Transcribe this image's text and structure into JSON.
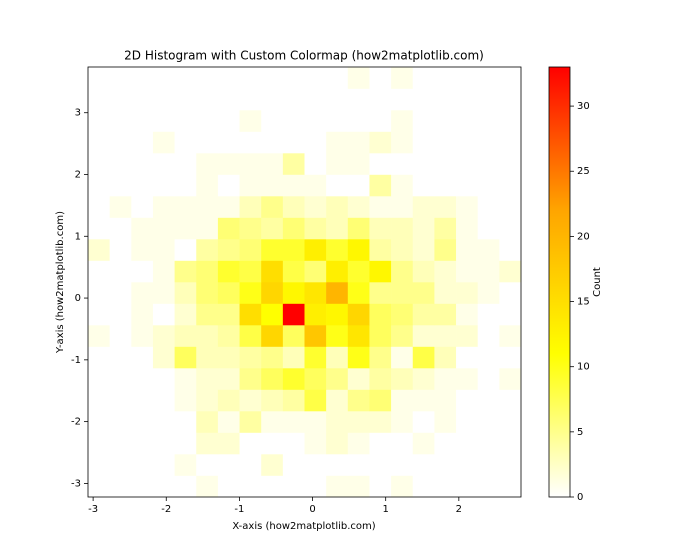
{
  "chart_data": {
    "type": "histogram2d",
    "title": "2D Histogram with Custom Colormap (how2matplotlib.com)",
    "x_label": "X-axis (how2matplotlib.com)",
    "y_label": "Y-axis (how2matplotlib.com)",
    "colorbar_label": "Count",
    "colormap": [
      "#ffffff",
      "#ffff00",
      "#ffa500",
      "#ff0000"
    ],
    "clim": [
      0,
      33
    ],
    "cticks": [
      0,
      5,
      10,
      15,
      20,
      25,
      30
    ],
    "xlim": [
      -3.07,
      2.85
    ],
    "ylim": [
      -3.22,
      3.74
    ],
    "xticks": [
      -3,
      -2,
      -1,
      0,
      1,
      2
    ],
    "yticks": [
      -3,
      -2,
      -1,
      0,
      1,
      2,
      3
    ],
    "xbins": [
      -3.07,
      -2.774,
      -2.478,
      -2.182,
      -1.886,
      -1.59,
      -1.294,
      -0.998,
      -0.702,
      -0.406,
      -0.11,
      0.186,
      0.482,
      0.778,
      1.074,
      1.37,
      1.666,
      1.962,
      2.258,
      2.554,
      2.85
    ],
    "ybins": [
      -3.22,
      -2.872,
      -2.524,
      -2.176,
      -1.828,
      -1.48,
      -1.132,
      -0.784,
      -0.436,
      -0.088,
      0.26,
      0.608,
      0.956,
      1.304,
      1.652,
      2.0,
      2.348,
      2.696,
      3.044,
      3.392,
      3.74
    ],
    "counts": [
      [
        0,
        0,
        0,
        0,
        0,
        1,
        0,
        0,
        0,
        0,
        0,
        1,
        1,
        0,
        1,
        0,
        0,
        0,
        0,
        0
      ],
      [
        0,
        0,
        0,
        0,
        1,
        0,
        0,
        0,
        2,
        0,
        0,
        0,
        0,
        0,
        0,
        0,
        0,
        0,
        0,
        0
      ],
      [
        0,
        0,
        0,
        0,
        0,
        2,
        2,
        0,
        0,
        0,
        1,
        2,
        1,
        0,
        0,
        1,
        0,
        0,
        0,
        0
      ],
      [
        0,
        0,
        0,
        0,
        0,
        3,
        1,
        4,
        1,
        1,
        1,
        2,
        2,
        2,
        1,
        0,
        1,
        0,
        0,
        0
      ],
      [
        0,
        0,
        0,
        0,
        1,
        2,
        3,
        2,
        3,
        4,
        8,
        2,
        5,
        6,
        1,
        1,
        1,
        0,
        0,
        0
      ],
      [
        0,
        0,
        0,
        0,
        1,
        2,
        2,
        5,
        7,
        9,
        7,
        5,
        2,
        4,
        3,
        2,
        1,
        1,
        0,
        1
      ],
      [
        0,
        0,
        0,
        2,
        7,
        3,
        3,
        4,
        5,
        3,
        9,
        3,
        10,
        5,
        1,
        8,
        3,
        0,
        0,
        0
      ],
      [
        1,
        0,
        1,
        2,
        3,
        3,
        4,
        8,
        16,
        7,
        18,
        10,
        14,
        7,
        5,
        2,
        2,
        2,
        0,
        1
      ],
      [
        0,
        0,
        1,
        0,
        2,
        5,
        5,
        15,
        11,
        33,
        13,
        12,
        16,
        7,
        6,
        4,
        4,
        1,
        0,
        0
      ],
      [
        0,
        0,
        1,
        1,
        3,
        6,
        7,
        10,
        16,
        12,
        14,
        20,
        10,
        5,
        5,
        5,
        2,
        2,
        1,
        0
      ],
      [
        0,
        0,
        0,
        1,
        5,
        6,
        9,
        8,
        15,
        8,
        6,
        13,
        9,
        12,
        5,
        3,
        2,
        1,
        1,
        2
      ],
      [
        2,
        0,
        1,
        1,
        0,
        4,
        5,
        6,
        9,
        9,
        13,
        9,
        12,
        4,
        3,
        2,
        5,
        1,
        1,
        0
      ],
      [
        0,
        0,
        1,
        1,
        1,
        1,
        6,
        5,
        4,
        6,
        4,
        3,
        6,
        3,
        3,
        2,
        4,
        1,
        0,
        0
      ],
      [
        0,
        1,
        0,
        1,
        1,
        1,
        1,
        3,
        5,
        3,
        2,
        3,
        2,
        1,
        1,
        2,
        2,
        1,
        0,
        0
      ],
      [
        0,
        0,
        0,
        0,
        0,
        1,
        0,
        1,
        1,
        1,
        1,
        0,
        0,
        4,
        1,
        0,
        0,
        0,
        0,
        0
      ],
      [
        0,
        0,
        0,
        0,
        0,
        1,
        1,
        1,
        1,
        4,
        0,
        1,
        1,
        0,
        0,
        0,
        0,
        0,
        0,
        0
      ],
      [
        0,
        0,
        0,
        1,
        0,
        0,
        0,
        0,
        0,
        0,
        0,
        1,
        1,
        2,
        1,
        0,
        0,
        0,
        0,
        0
      ],
      [
        0,
        0,
        0,
        0,
        0,
        0,
        0,
        1,
        0,
        0,
        0,
        0,
        0,
        0,
        1,
        0,
        0,
        0,
        0,
        0
      ],
      [
        0,
        0,
        0,
        0,
        0,
        0,
        0,
        0,
        0,
        0,
        0,
        0,
        0,
        0,
        0,
        0,
        0,
        0,
        0,
        0
      ],
      [
        0,
        0,
        0,
        0,
        0,
        0,
        0,
        0,
        0,
        0,
        0,
        0,
        1,
        0,
        1,
        0,
        0,
        0,
        0,
        0
      ]
    ]
  }
}
